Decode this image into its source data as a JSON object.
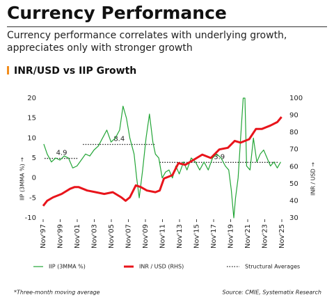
{
  "header": {
    "title": "Currency Performance",
    "subtitle": "Currency performance correlates with underlying growth, appreciates only with stronger growth"
  },
  "chart_data": {
    "type": "line",
    "title": "INR/USD vs IIP Growth",
    "ylabel": "IIP (3MMA %) →",
    "y2label": "INR / USD →",
    "xlim": [
      1997.83,
      2025.83
    ],
    "xticks": [
      {
        "value": 1997.83,
        "label": "Nov'97"
      },
      {
        "value": 1999.83,
        "label": "Nov'99"
      },
      {
        "value": 2001.83,
        "label": "Nov'01"
      },
      {
        "value": 2003.83,
        "label": "Nov'03"
      },
      {
        "value": 2005.83,
        "label": "Nov'05"
      },
      {
        "value": 2007.83,
        "label": "Nov'07"
      },
      {
        "value": 2009.83,
        "label": "Nov'09"
      },
      {
        "value": 2011.83,
        "label": "Nov'11"
      },
      {
        "value": 2013.83,
        "label": "Nov'13"
      },
      {
        "value": 2015.83,
        "label": "Nov'15"
      },
      {
        "value": 2017.83,
        "label": "Nov'17"
      },
      {
        "value": 2019.83,
        "label": "Nov'19"
      },
      {
        "value": 2021.83,
        "label": "Nov'21"
      },
      {
        "value": 2023.83,
        "label": "Nov'23"
      },
      {
        "value": 2025.83,
        "label": "Nov'25"
      }
    ],
    "ylim": [
      -10,
      20
    ],
    "yticks": [
      -10,
      -5,
      0,
      5,
      10,
      15,
      20
    ],
    "y2lim": [
      30,
      100
    ],
    "y2ticks": [
      30,
      40,
      50,
      60,
      70,
      80,
      90,
      100
    ],
    "series": [
      {
        "name": "IIP (3MMA %)",
        "color": "#22a536",
        "width": 1.2,
        "x": [
          1997.9,
          1998.3,
          1998.8,
          1999.3,
          1999.8,
          2000.3,
          2000.8,
          2001.3,
          2001.8,
          2002.3,
          2002.8,
          2003.3,
          2003.8,
          2004.3,
          2004.8,
          2005.3,
          2005.8,
          2006.3,
          2006.8,
          2007.2,
          2007.6,
          2008.0,
          2008.5,
          2008.8,
          2009.1,
          2009.5,
          2009.9,
          2010.3,
          2010.7,
          2011.0,
          2011.4,
          2011.8,
          2012.2,
          2012.6,
          2013.0,
          2013.4,
          2013.8,
          2014.3,
          2014.7,
          2015.2,
          2015.7,
          2016.2,
          2016.7,
          2017.2,
          2017.7,
          2018.2,
          2018.7,
          2019.2,
          2019.6,
          2019.9,
          2020.2,
          2020.4,
          2020.7,
          2021.0,
          2021.3,
          2021.5,
          2021.7,
          2022.1,
          2022.5,
          2022.9,
          2023.3,
          2023.7,
          2024.1,
          2024.5,
          2024.9,
          2025.3,
          2025.7
        ],
        "values": [
          8.5,
          6,
          4,
          5,
          4.5,
          5.5,
          5,
          2.5,
          3,
          4.5,
          6,
          5.5,
          7,
          8,
          10,
          12,
          9,
          10,
          12,
          18,
          15,
          10,
          6,
          0,
          -5,
          2,
          10,
          16,
          9,
          6,
          5,
          0,
          1.5,
          2,
          0,
          3,
          1,
          4,
          2,
          5,
          4,
          2,
          4,
          2,
          5,
          6,
          5,
          3,
          2,
          -3,
          -10,
          -5,
          0,
          10,
          20,
          20,
          3,
          2,
          10,
          4,
          6,
          7,
          5,
          3,
          4,
          2.5,
          4
        ]
      },
      {
        "name": "INR / USD (RHS)",
        "color": "#e8141b",
        "width": 3,
        "axis": "y2",
        "x": [
          1997.83,
          1998.3,
          1999.0,
          2000.0,
          2001.0,
          2001.5,
          2002.0,
          2003.0,
          2004.0,
          2005.0,
          2006.0,
          2007.0,
          2007.5,
          2008.0,
          2008.7,
          2009.3,
          2010.0,
          2011.0,
          2011.5,
          2012.0,
          2013.0,
          2013.7,
          2014.5,
          2015.5,
          2016.5,
          2017.5,
          2018.5,
          2019.5,
          2020.3,
          2021.0,
          2022.0,
          2022.8,
          2023.5,
          2024.5,
          2025.3,
          2025.8
        ],
        "values": [
          37,
          40,
          42,
          44,
          47,
          48,
          48,
          46,
          45,
          44,
          45,
          42,
          40,
          42,
          49,
          48,
          46,
          45,
          46,
          53,
          55,
          62,
          61,
          64,
          67,
          65,
          70,
          71,
          75,
          74,
          76,
          82,
          82,
          84,
          86,
          89
        ]
      }
    ],
    "averages": {
      "name": "Structural Averages",
      "segments": [
        {
          "x": [
            1998.0,
            2002.0
          ],
          "value": 4.9
        },
        {
          "x": [
            2002.5,
            2011.0
          ],
          "value": 8.4
        },
        {
          "x": [
            2011.5,
            2025.5
          ],
          "value": 3.9
        }
      ]
    }
  },
  "footer": {
    "note": "*Three-month moving average",
    "source": "Source: CMIE, Systematix Research"
  }
}
